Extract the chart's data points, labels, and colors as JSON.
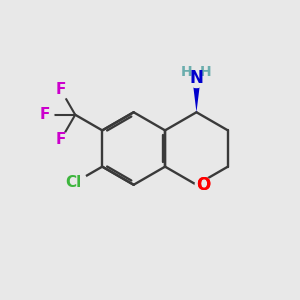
{
  "bg_color": "#e8e8e8",
  "bond_color": "#3a3a3a",
  "o_color": "#ff0000",
  "n_color": "#0000cc",
  "cl_color": "#3db53d",
  "f_color": "#cc00cc",
  "h_color": "#6aadad",
  "wedge_color": "#0000cc",
  "figsize": [
    3.0,
    3.0
  ],
  "dpi": 100,
  "xlim": [
    0,
    10
  ],
  "ylim": [
    0,
    10
  ]
}
